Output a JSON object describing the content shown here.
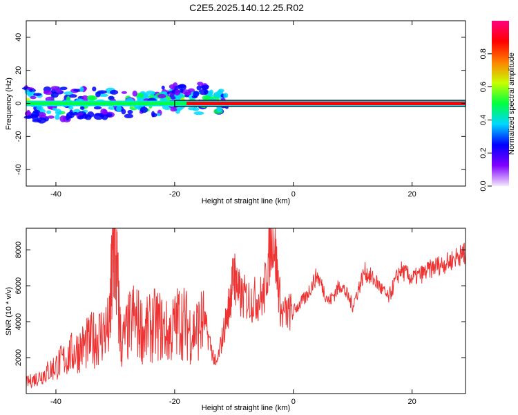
{
  "title": "C2E5.2025.140.12.25.R02",
  "chart_data": [
    {
      "type": "heatmap",
      "xlabel": "Height of straight line (km)",
      "ylabel": "Frequency (Hz)",
      "xlim": [
        -45,
        29
      ],
      "ylim": [
        -50,
        50
      ],
      "xticks": [
        -40,
        -20,
        0,
        20
      ],
      "yticks": [
        -40,
        -20,
        0,
        20,
        40
      ],
      "grid": false,
      "colorbar": {
        "label": "Normalized spectral amplitude",
        "range": [
          0,
          1
        ],
        "ticks": [
          "0.0",
          "0.2",
          "0.4",
          "0.6",
          "0.8"
        ],
        "colors": [
          "#f4e8fb",
          "#8000ff",
          "#0000ff",
          "#00d8ff",
          "#00ff40",
          "#c8ff00",
          "#ff8000",
          "#ff0000",
          "#ff0080"
        ]
      },
      "ridge": {
        "description_values": "strong narrow band near 0 Hz",
        "center_hz": 0,
        "segments": [
          {
            "x0": -45,
            "x1": -20,
            "level": 0.45
          },
          {
            "x0": -20,
            "x1": -18,
            "level": 0.5
          },
          {
            "x0": -18,
            "x1": 29,
            "level": 0.85
          }
        ]
      }
    },
    {
      "type": "line",
      "xlabel": "Height of straight line (km)",
      "ylabel": "SNR (10 * v/v)",
      "xlim": [
        -45,
        29
      ],
      "ylim": [
        0,
        9200
      ],
      "xticks": [
        -40,
        -20,
        0,
        20
      ],
      "yticks": [
        2000,
        4000,
        6000,
        8000
      ],
      "grid": false,
      "series": [
        {
          "color": "#ee3333",
          "x": [
            -45,
            -43,
            -41,
            -39,
            -37,
            -35,
            -33,
            -31,
            -30.2,
            -29,
            -27,
            -25,
            -23,
            -21,
            -19,
            -17,
            -15,
            -13,
            -11,
            -10,
            -9,
            -7,
            -5,
            -3.5,
            -2,
            0,
            2,
            4,
            6,
            8,
            10,
            12,
            14,
            16,
            18,
            20,
            22,
            24,
            26,
            28,
            29
          ],
          "y": [
            600,
            900,
            1300,
            1800,
            2300,
            2700,
            3200,
            3600,
            8800,
            2700,
            4200,
            3400,
            3900,
            3300,
            4200,
            3400,
            4000,
            1500,
            4600,
            6700,
            5400,
            5200,
            5400,
            9200,
            4400,
            4600,
            5300,
            6600,
            5100,
            6100,
            4900,
            6800,
            6200,
            5300,
            6900,
            6400,
            6700,
            7100,
            7300,
            7700,
            7800
          ]
        }
      ]
    }
  ]
}
